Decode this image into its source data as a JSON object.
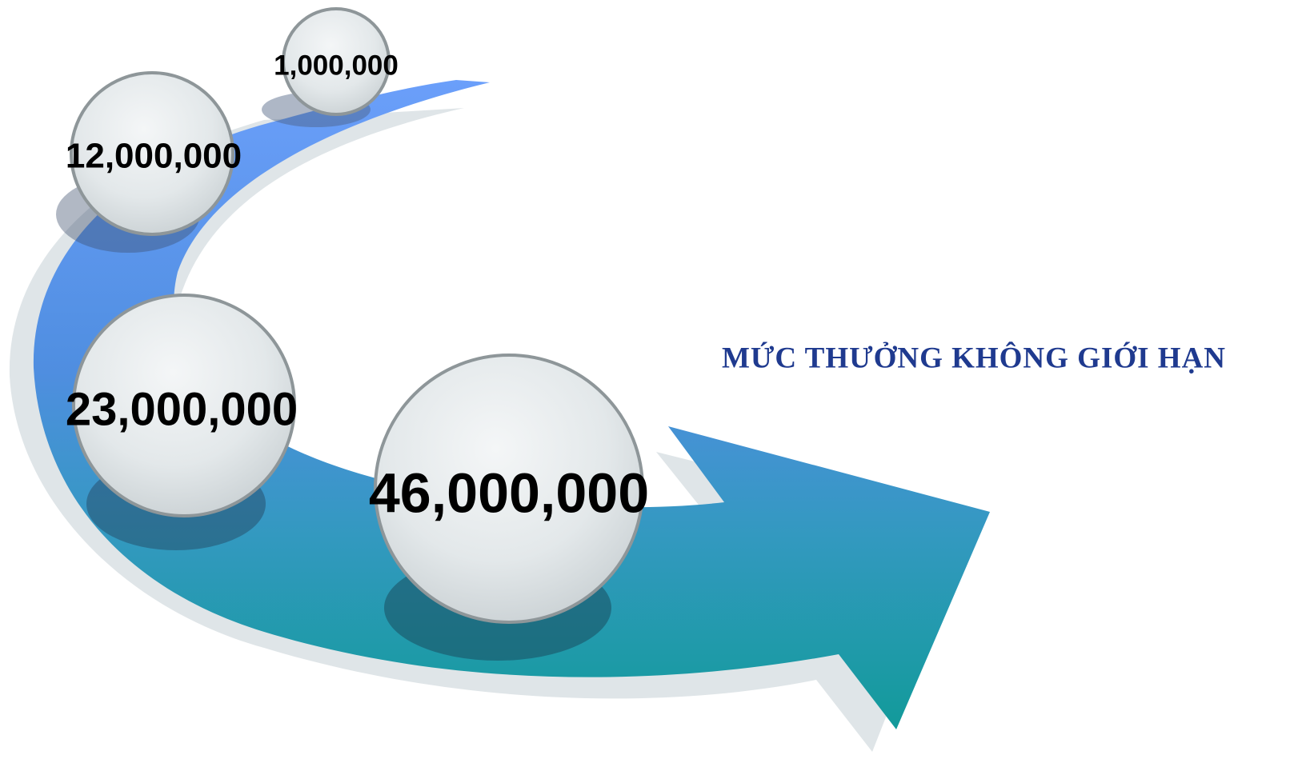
{
  "title": "MỨC THƯỞNG KHÔNG GIỚI HẠN",
  "nodes": [
    {
      "label": "1,000,000"
    },
    {
      "label": "12,000,000"
    },
    {
      "label": "23,000,000"
    },
    {
      "label": "46,000,000"
    }
  ]
}
